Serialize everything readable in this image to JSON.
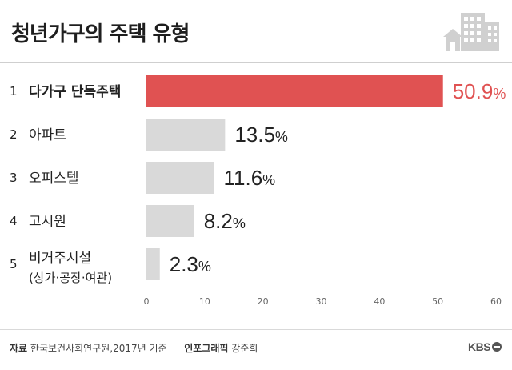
{
  "title": "청년가구의 주택 유형",
  "chart_data": {
    "type": "bar",
    "orientation": "horizontal",
    "categories": [
      {
        "rank": "1",
        "label": "다가구 단독주택",
        "sublabel": ""
      },
      {
        "rank": "2",
        "label": "아파트",
        "sublabel": ""
      },
      {
        "rank": "3",
        "label": "오피스텔",
        "sublabel": ""
      },
      {
        "rank": "4",
        "label": "고시원",
        "sublabel": ""
      },
      {
        "rank": "5",
        "label": "비거주시설",
        "sublabel": "(상가·공장·여관)"
      }
    ],
    "values": [
      50.9,
      13.5,
      11.6,
      8.2,
      2.3
    ],
    "value_unit": "%",
    "xlim": [
      0,
      60
    ],
    "xticks": [
      0,
      10,
      20,
      30,
      40,
      50,
      60
    ],
    "grid": false,
    "highlight_index": 0,
    "colors": {
      "highlight": "#e05252",
      "default": "#d9d9d9",
      "highlight_text": "#e05252",
      "value_text": "#222222"
    }
  },
  "footer": {
    "source_label": "자료",
    "source_value": "한국보건사회연구원,2017년 기준",
    "credit_label": "인포그래픽",
    "credit_value": "강준희",
    "logo": "KBS"
  },
  "icons": {
    "header": "building-icon",
    "logo": "kbs-logo-icon"
  }
}
